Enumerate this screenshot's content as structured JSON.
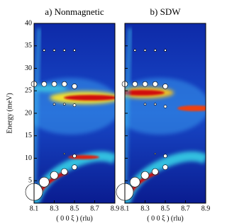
{
  "chart_data": [
    {
      "type": "scatter",
      "title": "a) Nonmagnetic",
      "xlabel": "( 0 0 ξ ) (rlu)",
      "ylabel": "Energy (meV)",
      "xlim": [
        8.1,
        8.9
      ],
      "xticks": [
        8.1,
        8.3,
        8.5,
        8.7,
        8.9
      ],
      "ylim": [
        0,
        40
      ],
      "yticks": [
        5,
        10,
        15,
        20,
        25,
        30,
        35,
        40
      ],
      "color": "#ffffff",
      "x": [
        8.2,
        8.3,
        8.4,
        8.5,
        8.1,
        8.2,
        8.3,
        8.4,
        8.5,
        8.3,
        8.4,
        8.5,
        8.4,
        8.5,
        8.1,
        8.2,
        8.3,
        8.4,
        8.5
      ],
      "y": [
        34,
        34,
        34,
        34,
        26.5,
        26.5,
        26.5,
        26.5,
        26,
        22,
        22,
        21.8,
        11,
        10.5,
        2.5,
        4.7,
        6.2,
        7,
        8
      ],
      "sizes": [
        1.5,
        1.5,
        1.5,
        1.5,
        4,
        3.5,
        3.5,
        3.5,
        3.5,
        1.5,
        1.5,
        2,
        1,
        2.5,
        12,
        7,
        5.5,
        4.5,
        3.5
      ]
    },
    {
      "type": "scatter",
      "title": "b) SDW",
      "xlabel": "( 0 0 ξ ) (rlu)",
      "xlim": [
        8.1,
        8.9
      ],
      "xticks": [
        8.1,
        8.3,
        8.5,
        8.7,
        8.9
      ],
      "ylim": [
        0,
        40
      ],
      "yticks": [
        5,
        10,
        15,
        20,
        25,
        30,
        35,
        40
      ],
      "color": "#ffffff",
      "x": [
        8.2,
        8.3,
        8.4,
        8.5,
        8.1,
        8.2,
        8.3,
        8.4,
        8.5,
        8.3,
        8.4,
        8.5,
        8.4,
        8.5,
        8.1,
        8.2,
        8.3,
        8.4,
        8.5
      ],
      "y": [
        34,
        34,
        34,
        34,
        26.5,
        26.5,
        26.5,
        26.5,
        26,
        22,
        22,
        21.5,
        11,
        10.5,
        2.5,
        4.7,
        6.2,
        7,
        8
      ],
      "sizes": [
        1.5,
        1.5,
        1.5,
        1.5,
        4,
        3.5,
        3.5,
        3.5,
        3.5,
        1.5,
        1.5,
        2,
        1,
        2.5,
        12,
        7,
        5.5,
        4.5,
        3.5
      ]
    }
  ]
}
